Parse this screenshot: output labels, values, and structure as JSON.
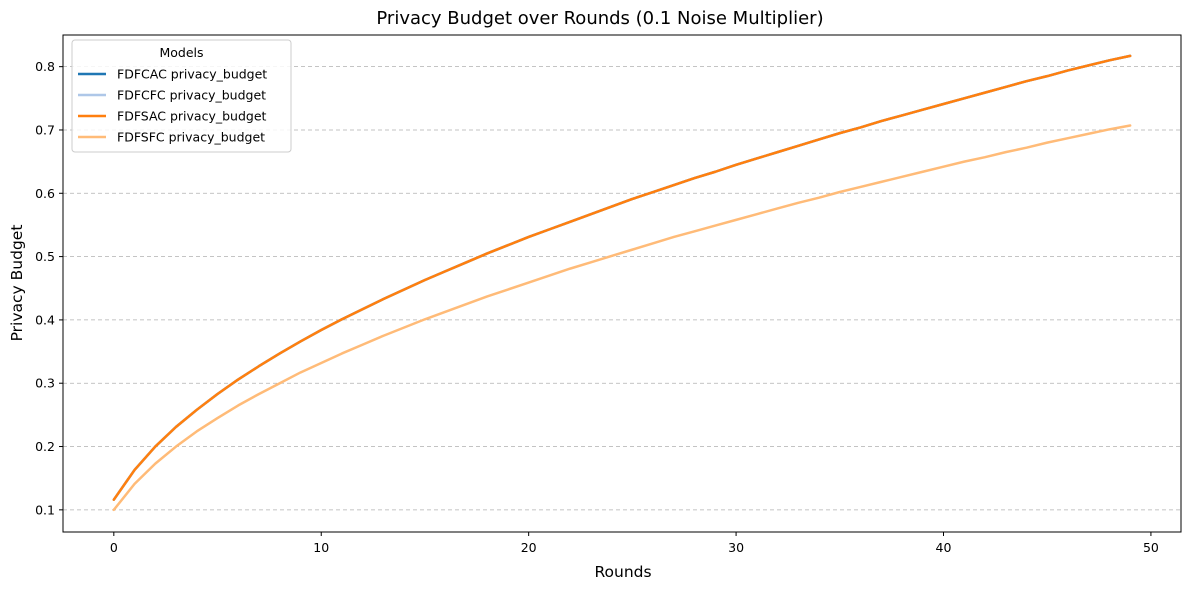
{
  "chart_data": {
    "type": "line",
    "title": "Privacy Budget over Rounds (0.1 Noise Multiplier)",
    "xlabel": "Rounds",
    "ylabel": "Privacy Budget",
    "xlim": [
      -2.45,
      51.45
    ],
    "ylim": [
      0.065,
      0.85
    ],
    "x_ticks": [
      0,
      10,
      20,
      30,
      40,
      50
    ],
    "x_tick_labels": [
      "0",
      "10",
      "20",
      "30",
      "40",
      "50"
    ],
    "y_ticks": [
      0.1,
      0.2,
      0.3,
      0.4,
      0.5,
      0.6,
      0.7,
      0.8
    ],
    "y_tick_labels": [
      "0.1",
      "0.2",
      "0.3",
      "0.4",
      "0.5",
      "0.6",
      "0.7",
      "0.8"
    ],
    "grid": "y-dashed",
    "legend": {
      "title": "Models",
      "placement": "top-left"
    },
    "x": [
      0,
      1,
      2,
      3,
      4,
      5,
      6,
      7,
      8,
      9,
      10,
      11,
      12,
      13,
      14,
      15,
      16,
      17,
      18,
      19,
      20,
      21,
      22,
      23,
      24,
      25,
      26,
      27,
      28,
      29,
      30,
      31,
      32,
      33,
      34,
      35,
      36,
      37,
      38,
      39,
      40,
      41,
      42,
      43,
      44,
      45,
      46,
      47,
      48,
      49
    ],
    "series": [
      {
        "name": "FDFCAC privacy_budget",
        "color": "#1f77b4",
        "values": [
          0.116,
          0.163,
          0.2,
          0.231,
          0.258,
          0.283,
          0.306,
          0.327,
          0.347,
          0.366,
          0.384,
          0.401,
          0.417,
          0.433,
          0.448,
          0.463,
          0.477,
          0.491,
          0.505,
          0.518,
          0.531,
          0.543,
          0.555,
          0.567,
          0.579,
          0.591,
          0.602,
          0.613,
          0.624,
          0.634,
          0.645,
          0.655,
          0.665,
          0.675,
          0.685,
          0.695,
          0.704,
          0.714,
          0.723,
          0.732,
          0.741,
          0.75,
          0.759,
          0.768,
          0.777,
          0.785,
          0.794,
          0.802,
          0.81,
          0.817
        ]
      },
      {
        "name": "FDFCFC privacy_budget",
        "color": "#aec7e8",
        "values": [
          0.116,
          0.163,
          0.2,
          0.231,
          0.258,
          0.283,
          0.306,
          0.327,
          0.347,
          0.366,
          0.384,
          0.401,
          0.417,
          0.433,
          0.448,
          0.463,
          0.477,
          0.491,
          0.505,
          0.518,
          0.531,
          0.543,
          0.555,
          0.567,
          0.579,
          0.591,
          0.602,
          0.613,
          0.624,
          0.634,
          0.645,
          0.655,
          0.665,
          0.675,
          0.685,
          0.695,
          0.704,
          0.714,
          0.723,
          0.732,
          0.741,
          0.75,
          0.759,
          0.768,
          0.777,
          0.785,
          0.794,
          0.802,
          0.81,
          0.817
        ]
      },
      {
        "name": "FDFSAC privacy_budget",
        "color": "#ff7f0e",
        "values": [
          0.116,
          0.163,
          0.2,
          0.231,
          0.258,
          0.283,
          0.306,
          0.327,
          0.347,
          0.366,
          0.384,
          0.401,
          0.417,
          0.433,
          0.448,
          0.463,
          0.477,
          0.491,
          0.505,
          0.518,
          0.531,
          0.543,
          0.555,
          0.567,
          0.579,
          0.591,
          0.602,
          0.613,
          0.624,
          0.634,
          0.645,
          0.655,
          0.665,
          0.675,
          0.685,
          0.695,
          0.704,
          0.714,
          0.723,
          0.732,
          0.741,
          0.75,
          0.759,
          0.768,
          0.777,
          0.785,
          0.794,
          0.802,
          0.81,
          0.817
        ]
      },
      {
        "name": "FDFSFC privacy_budget",
        "color": "#ffbb78",
        "values": [
          0.1,
          0.141,
          0.173,
          0.2,
          0.224,
          0.245,
          0.265,
          0.283,
          0.3,
          0.317,
          0.332,
          0.347,
          0.361,
          0.375,
          0.388,
          0.401,
          0.413,
          0.425,
          0.437,
          0.448,
          0.459,
          0.47,
          0.481,
          0.491,
          0.501,
          0.511,
          0.521,
          0.531,
          0.54,
          0.549,
          0.558,
          0.567,
          0.576,
          0.585,
          0.593,
          0.602,
          0.61,
          0.618,
          0.626,
          0.634,
          0.642,
          0.65,
          0.657,
          0.665,
          0.672,
          0.68,
          0.687,
          0.694,
          0.701,
          0.707
        ]
      }
    ]
  }
}
